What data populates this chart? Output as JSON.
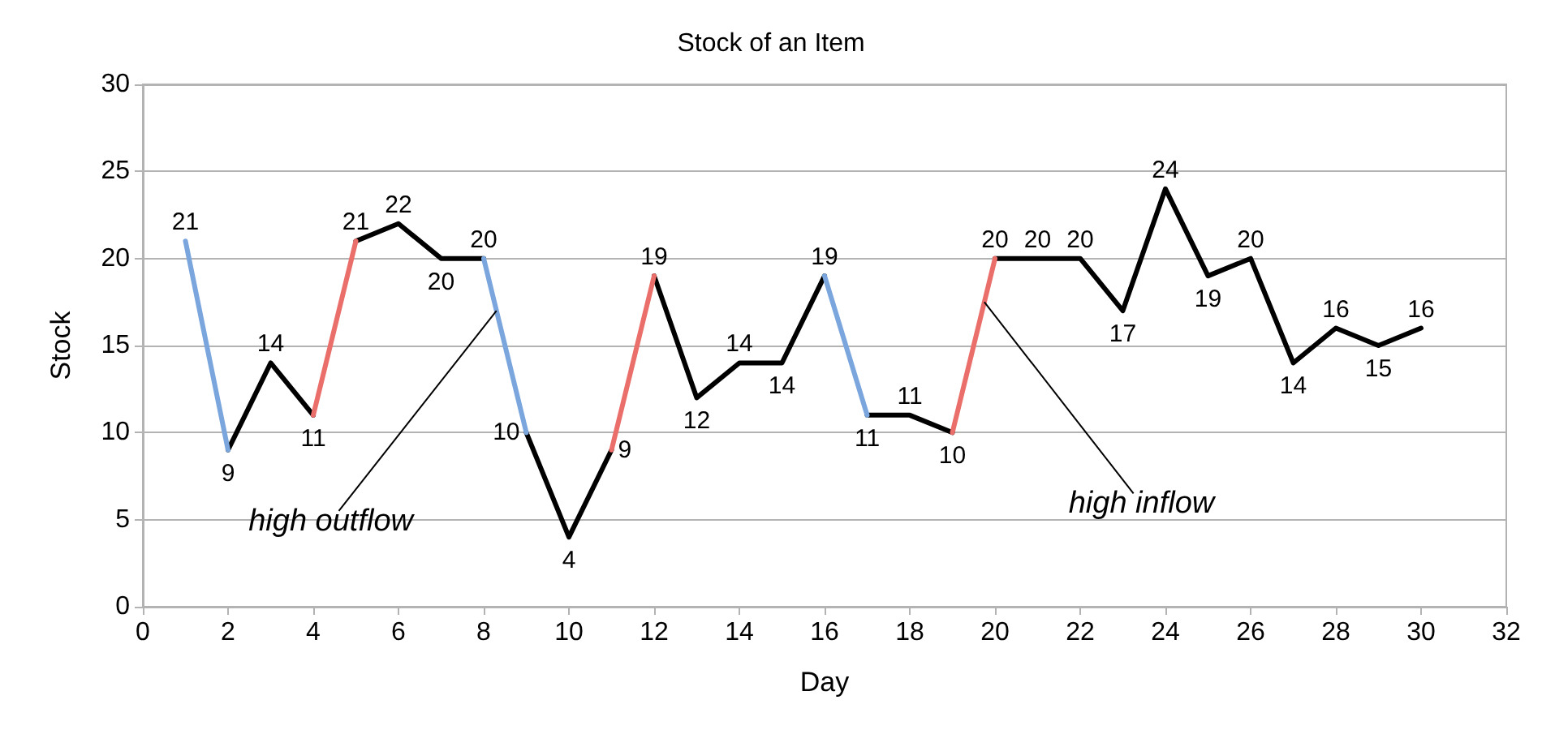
{
  "chart_data": {
    "type": "line",
    "title": "Stock of an Item",
    "xlabel": "Day",
    "ylabel": "Stock",
    "x": [
      1,
      2,
      3,
      4,
      5,
      6,
      7,
      8,
      9,
      10,
      11,
      12,
      13,
      14,
      15,
      16,
      17,
      18,
      19,
      20,
      21,
      22,
      23,
      24,
      25,
      26,
      27,
      28,
      29,
      30
    ],
    "series": [
      {
        "color": "#000000",
        "values": [
          null,
          9,
          14,
          11,
          null,
          null,
          null,
          null,
          10,
          4,
          9,
          null,
          null,
          null,
          null,
          null,
          11,
          11,
          10,
          null,
          null,
          null,
          null,
          null,
          null,
          null,
          null,
          null,
          null,
          null
        ],
        "value_labels": [
          null,
          "9",
          "14",
          "11",
          null,
          null,
          null,
          null,
          "10",
          "4",
          "9",
          null,
          null,
          null,
          null,
          null,
          "11",
          "11",
          "10",
          null,
          null,
          null,
          null,
          null,
          null,
          null,
          null,
          null,
          null,
          null
        ]
      },
      {
        "color": "#000000",
        "values": [
          null,
          null,
          null,
          null,
          21,
          22,
          20,
          20,
          null,
          null,
          null,
          19,
          12,
          14,
          14,
          19,
          null,
          null,
          null,
          20,
          20,
          20,
          17,
          24,
          19,
          20,
          14,
          16,
          15,
          16
        ],
        "value_labels": [
          null,
          null,
          null,
          null,
          "21",
          "22",
          "20",
          "20",
          null,
          null,
          null,
          "19",
          "12",
          "14",
          "14",
          "19",
          null,
          null,
          null,
          "20",
          "20",
          "20",
          "17",
          "24",
          "19",
          "20",
          "14",
          "16",
          "15",
          "16"
        ]
      },
      {
        "color": "#7aa6dd",
        "values": [
          21,
          9,
          null,
          null,
          null,
          null,
          null,
          20,
          10,
          null,
          null,
          null,
          null,
          null,
          null,
          19,
          11,
          null,
          null,
          null,
          null,
          null,
          null,
          null,
          null,
          null,
          null,
          null,
          null,
          null
        ],
        "value_labels": [
          "21",
          null,
          null,
          null,
          null,
          null,
          null,
          null,
          null,
          null,
          null,
          null,
          null,
          null,
          null,
          null,
          null,
          null,
          null,
          null,
          null,
          null,
          null,
          null,
          null,
          null,
          null,
          null,
          null,
          null
        ]
      },
      {
        "color": "#ea6e6a",
        "values": [
          null,
          null,
          null,
          11,
          21,
          null,
          null,
          null,
          null,
          null,
          9,
          19,
          null,
          null,
          null,
          null,
          null,
          null,
          10,
          20,
          null,
          null,
          null,
          null,
          null,
          null,
          null,
          null,
          null,
          null
        ]
      }
    ],
    "annotations": [
      {
        "text": "high outflow",
        "x": 8.3,
        "y": 17
      },
      {
        "text": "high inflow",
        "x": 19.75,
        "y": 17.5
      }
    ],
    "xlim": [
      0,
      32
    ],
    "xticks": [
      0,
      2,
      4,
      6,
      8,
      10,
      12,
      14,
      16,
      18,
      20,
      22,
      24,
      26,
      28,
      30,
      32
    ],
    "ylim": [
      0,
      30
    ],
    "yticks": [
      0,
      5,
      10,
      15,
      20,
      25,
      30
    ],
    "grid": "y",
    "marker": "none",
    "line_style": "solid"
  }
}
